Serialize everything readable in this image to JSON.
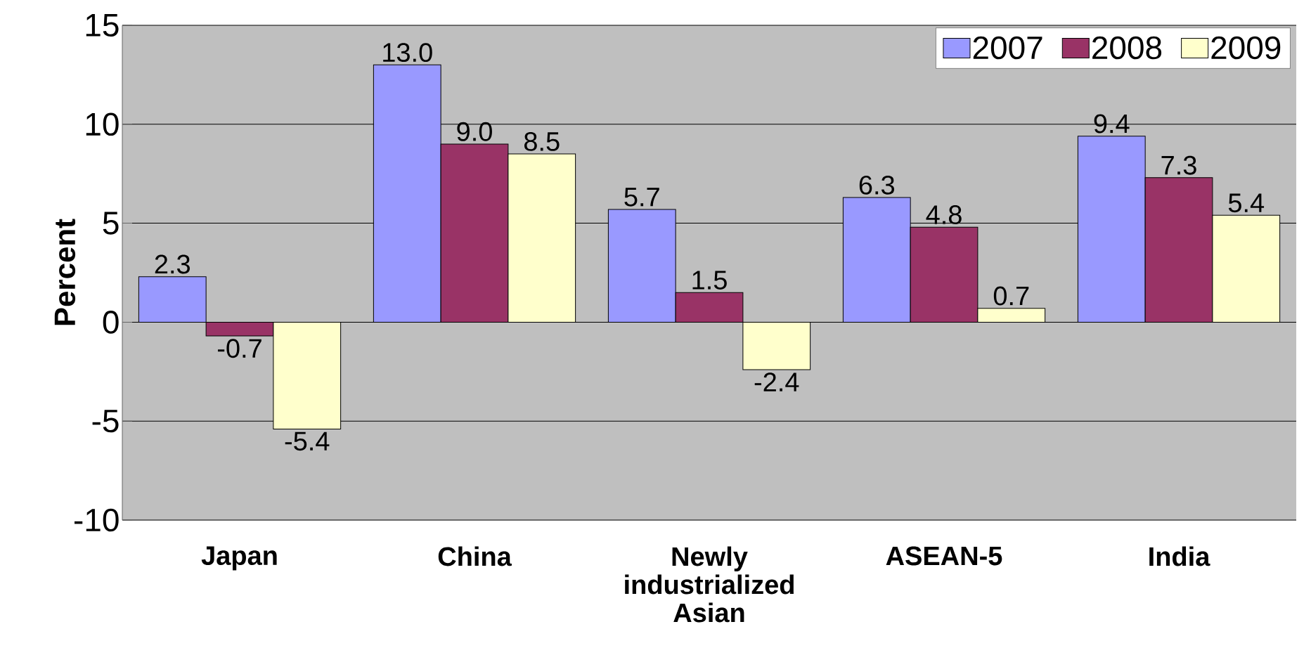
{
  "chart_data": {
    "type": "bar",
    "ylabel": "Percent",
    "categories": [
      "Japan",
      "China",
      "Newly industrialized Asian",
      "ASEAN-5",
      "India"
    ],
    "series": [
      {
        "name": "2007",
        "color": "#9999ff",
        "values": [
          2.3,
          13.0,
          5.7,
          6.3,
          9.4
        ],
        "value_labels": [
          "2.3",
          "13.0",
          "5.7",
          "6.3",
          "9.4"
        ]
      },
      {
        "name": "2008",
        "color": "#993366",
        "values": [
          -0.7,
          9.0,
          1.5,
          4.8,
          7.3
        ],
        "value_labels": [
          "-0.7",
          "9.0",
          "1.5",
          "4.8",
          "7.3"
        ]
      },
      {
        "name": "2009",
        "color": "#ffffcc",
        "values": [
          -5.4,
          8.5,
          -2.4,
          0.7,
          5.4
        ],
        "value_labels": [
          "-5.4",
          "8.5",
          "-2.4",
          "0.7",
          "5.4"
        ]
      }
    ],
    "ylim": [
      -10,
      15
    ],
    "yticks": [
      -10,
      -5,
      0,
      5,
      10,
      15
    ],
    "grid": "y",
    "legend": "top right"
  }
}
